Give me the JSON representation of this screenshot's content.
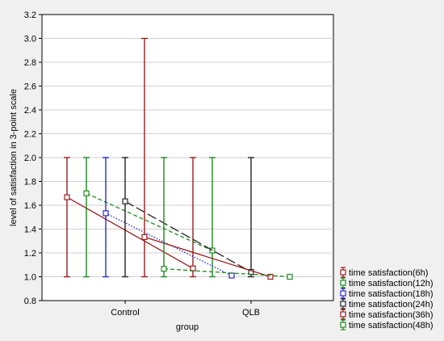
{
  "chart_data": {
    "type": "line",
    "xlabel": "group",
    "ylabel": "level of satisfaction in 3-point scale",
    "categories": [
      "Control",
      "QLB"
    ],
    "ylim": [
      0.8,
      3.2
    ],
    "yticks": [
      "0.8",
      "1.0",
      "1.2",
      "1.4",
      "1.6",
      "1.8",
      "2.0",
      "2.2",
      "2.4",
      "2.6",
      "2.8",
      "3.0",
      "3.2"
    ],
    "grid": true,
    "legend_position": "bottom-right",
    "series": [
      {
        "name": "time satisfaction(6h)",
        "color": "#9b1c1c",
        "dash": "solid",
        "means": [
          1.667,
          1.07
        ],
        "lower": [
          1.0,
          1.0
        ],
        "upper": [
          2.0,
          2.0
        ]
      },
      {
        "name": "time satisfaction(12h)",
        "color": "#1d8a1d",
        "dash": "dashed",
        "means": [
          1.7,
          1.22
        ],
        "lower": [
          1.0,
          1.0
        ],
        "upper": [
          2.0,
          2.0
        ]
      },
      {
        "name": "time satisfaction(18h)",
        "color": "#2a2acc",
        "dash": "dotted",
        "means": [
          1.533,
          1.01
        ],
        "lower": [
          1.0,
          1.0
        ],
        "upper": [
          2.0,
          1.0
        ]
      },
      {
        "name": "time satisfaction(24h)",
        "color": "#222222",
        "dash": "longdash",
        "means": [
          1.633,
          1.04
        ],
        "lower": [
          1.0,
          1.0
        ],
        "upper": [
          2.0,
          2.0
        ]
      },
      {
        "name": "time satisfaction(36h)",
        "color": "#9b1c1c",
        "dash": "solid",
        "means": [
          1.333,
          1.0
        ],
        "lower": [
          1.0,
          1.0
        ],
        "upper": [
          3.0,
          1.0
        ]
      },
      {
        "name": "time satisfaction(48h)",
        "color": "#1d8a1d",
        "dash": "dashed",
        "means": [
          1.067,
          1.0
        ],
        "lower": [
          1.0,
          1.0
        ],
        "upper": [
          2.0,
          1.0
        ]
      }
    ]
  }
}
